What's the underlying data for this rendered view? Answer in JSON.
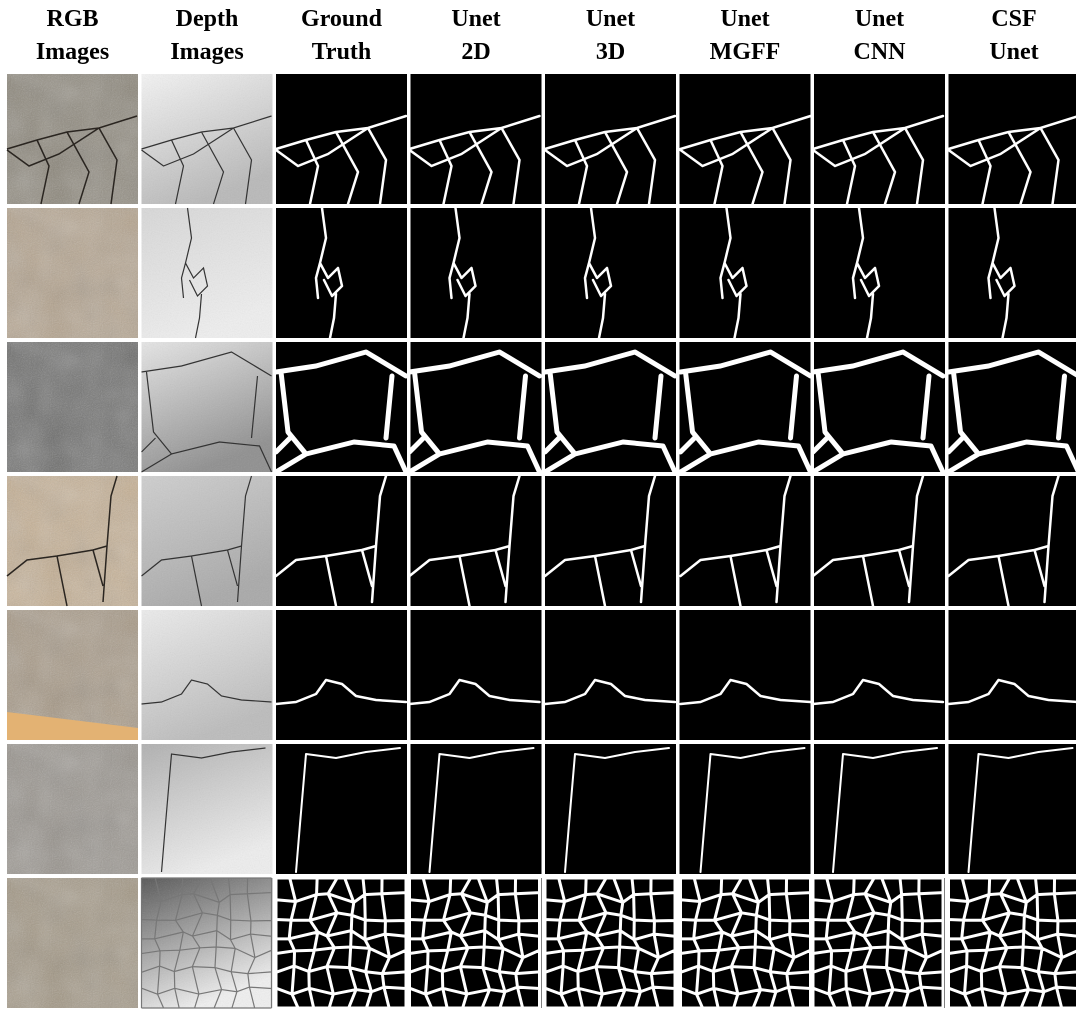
{
  "figure": {
    "headers": [
      [
        "RGB",
        "Images"
      ],
      [
        "Depth",
        "Images"
      ],
      [
        "Ground",
        "Truth"
      ],
      [
        "Unet",
        "2D"
      ],
      [
        "Unet",
        "3D"
      ],
      [
        "Unet",
        "MGFF"
      ],
      [
        "Unet",
        "CNN"
      ],
      [
        "CSF",
        "Unet"
      ]
    ]
  }
}
